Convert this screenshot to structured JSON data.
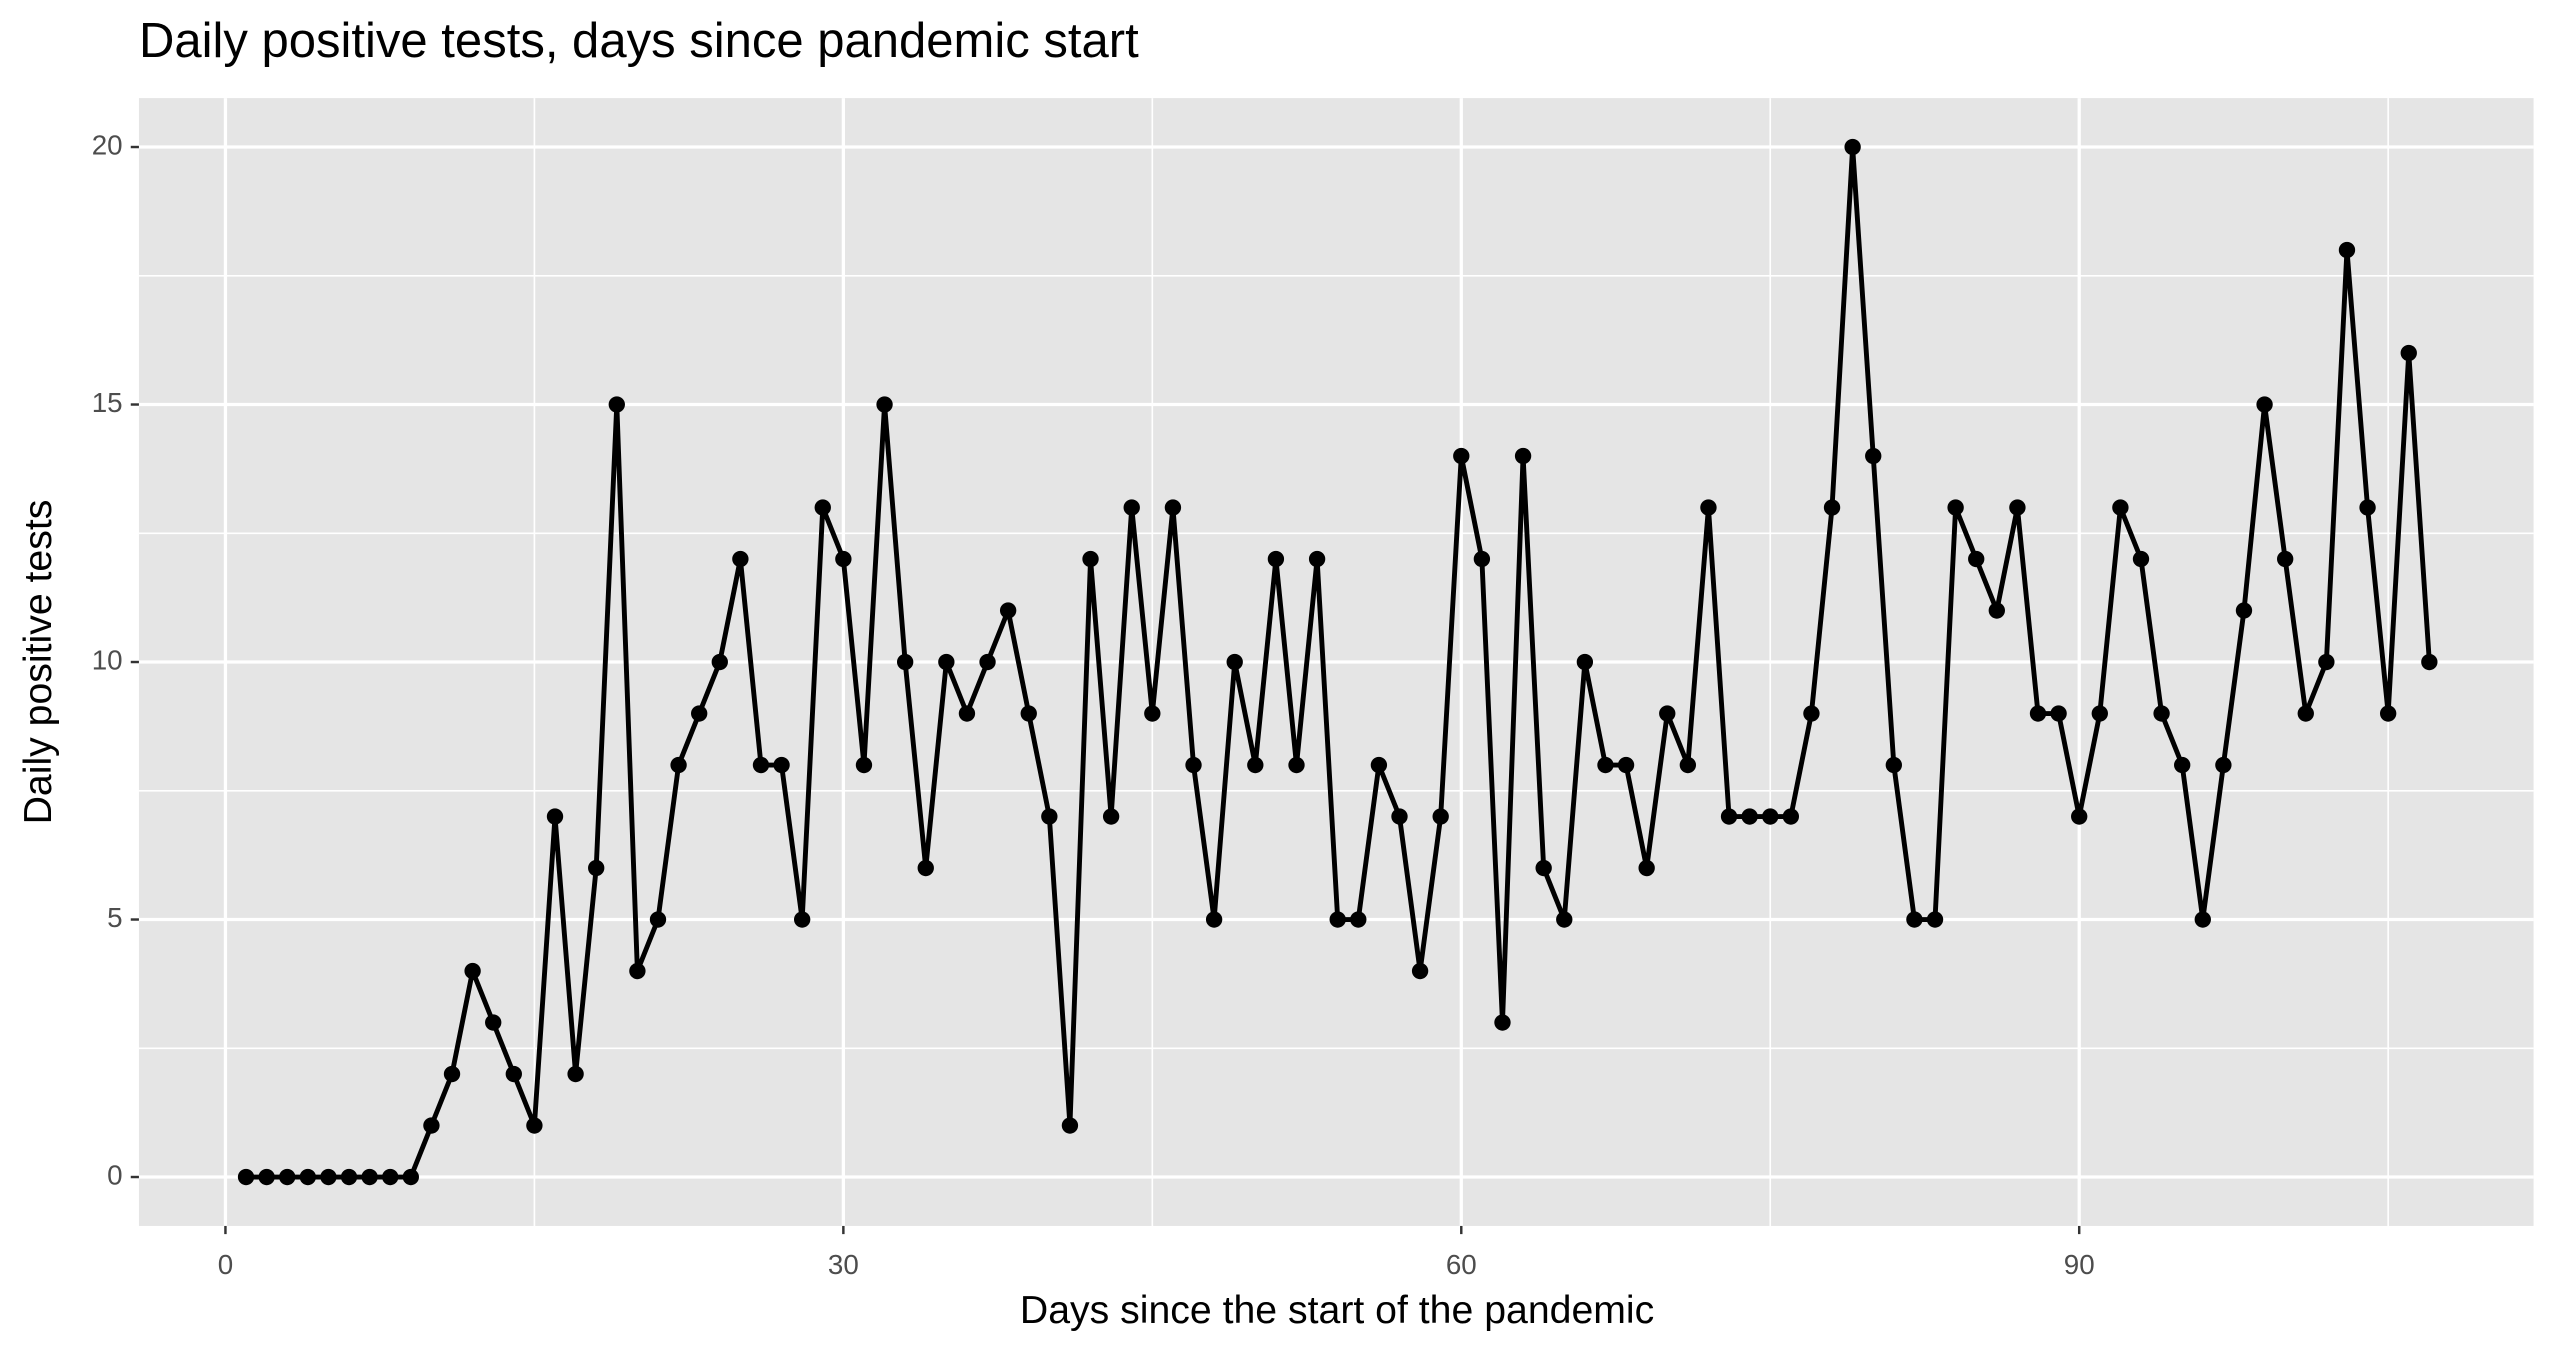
{
  "chart_data": {
    "type": "line",
    "title": "Daily positive tests, days since pandemic start",
    "x_label": "Days since the start of the pandemic",
    "y_label": "Daily positive tests",
    "x": [
      1,
      2,
      3,
      4,
      5,
      6,
      7,
      8,
      9,
      10,
      11,
      12,
      13,
      14,
      15,
      16,
      17,
      18,
      19,
      20,
      21,
      22,
      23,
      24,
      25,
      26,
      27,
      28,
      29,
      30,
      31,
      32,
      33,
      34,
      35,
      36,
      37,
      38,
      39,
      40,
      41,
      42,
      43,
      44,
      45,
      46,
      47,
      48,
      49,
      50,
      51,
      52,
      53,
      54,
      55,
      56,
      57,
      58,
      59,
      60,
      61,
      62,
      63,
      64,
      65,
      66,
      67,
      68,
      69,
      70,
      71,
      72,
      73,
      74,
      75,
      76,
      77,
      78,
      79,
      80,
      81,
      82,
      83,
      84,
      85,
      86,
      87,
      88,
      89,
      90,
      91,
      92,
      93,
      94,
      95,
      96,
      97,
      98,
      99,
      100,
      101,
      102,
      103,
      104,
      105,
      106,
      107
    ],
    "series": [
      {
        "name": "Daily positive tests",
        "color": "#000000",
        "values": [
          0,
          0,
          0,
          0,
          0,
          0,
          0,
          0,
          0,
          1,
          2,
          4,
          3,
          2,
          1,
          7,
          2,
          6,
          15,
          4,
          5,
          8,
          9,
          10,
          12,
          8,
          8,
          5,
          13,
          12,
          8,
          15,
          10,
          6,
          10,
          9,
          10,
          11,
          9,
          7,
          1,
          12,
          7,
          13,
          9,
          13,
          8,
          5,
          10,
          8,
          12,
          8,
          12,
          5,
          5,
          8,
          7,
          4,
          7,
          14,
          12,
          3,
          14,
          6,
          5,
          10,
          8,
          8,
          6,
          9,
          8,
          13,
          7,
          7,
          7,
          7,
          9,
          13,
          20,
          14,
          8,
          5,
          5,
          13,
          12,
          11,
          13,
          9,
          9,
          7,
          9,
          13,
          12,
          9,
          8,
          5,
          8,
          11,
          15,
          12,
          9,
          10,
          18,
          13,
          9,
          16,
          10
        ]
      }
    ],
    "xlim": [
      -4.2,
      112.06
    ],
    "ylim": [
      -0.95,
      20.95
    ],
    "xticks": [
      0,
      30,
      60,
      90
    ],
    "yticks": [
      0,
      5,
      10,
      15,
      20
    ],
    "grid": true,
    "background": "#e5e5e5"
  }
}
